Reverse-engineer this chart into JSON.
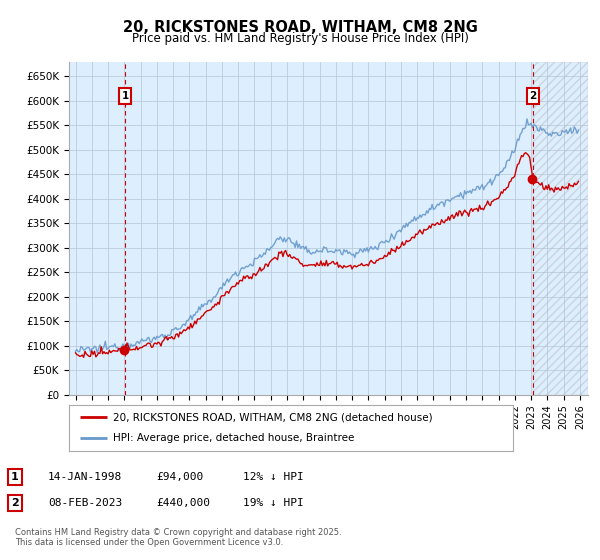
{
  "title": "20, RICKSTONES ROAD, WITHAM, CM8 2NG",
  "subtitle": "Price paid vs. HM Land Registry's House Price Index (HPI)",
  "ylim": [
    0,
    680000
  ],
  "xlim_start": 1994.6,
  "xlim_end": 2026.5,
  "yticks": [
    0,
    50000,
    100000,
    150000,
    200000,
    250000,
    300000,
    350000,
    400000,
    450000,
    500000,
    550000,
    600000,
    650000
  ],
  "ytick_labels": [
    "£0",
    "£50K",
    "£100K",
    "£150K",
    "£200K",
    "£250K",
    "£300K",
    "£350K",
    "£400K",
    "£450K",
    "£500K",
    "£550K",
    "£600K",
    "£650K"
  ],
  "sale1_date_label": "14-JAN-1998",
  "sale1_price": 94000,
  "sale1_price_label": "£94,000",
  "sale1_hpi_label": "12% ↓ HPI",
  "sale1_x": 1998.04,
  "sale2_date_label": "08-FEB-2023",
  "sale2_price": 440000,
  "sale2_price_label": "£440,000",
  "sale2_hpi_label": "19% ↓ HPI",
  "sale2_x": 2023.12,
  "line_color_red": "#cc0000",
  "line_color_blue": "#6699cc",
  "grid_color": "#bbccdd",
  "plot_bg_color": "#ddeeff",
  "bg_color": "#ffffff",
  "legend_label_red": "20, RICKSTONES ROAD, WITHAM, CM8 2NG (detached house)",
  "legend_label_blue": "HPI: Average price, detached house, Braintree",
  "footnote": "Contains HM Land Registry data © Crown copyright and database right 2025.\nThis data is licensed under the Open Government Licence v3.0.",
  "marker1_label": "1",
  "marker2_label": "2"
}
